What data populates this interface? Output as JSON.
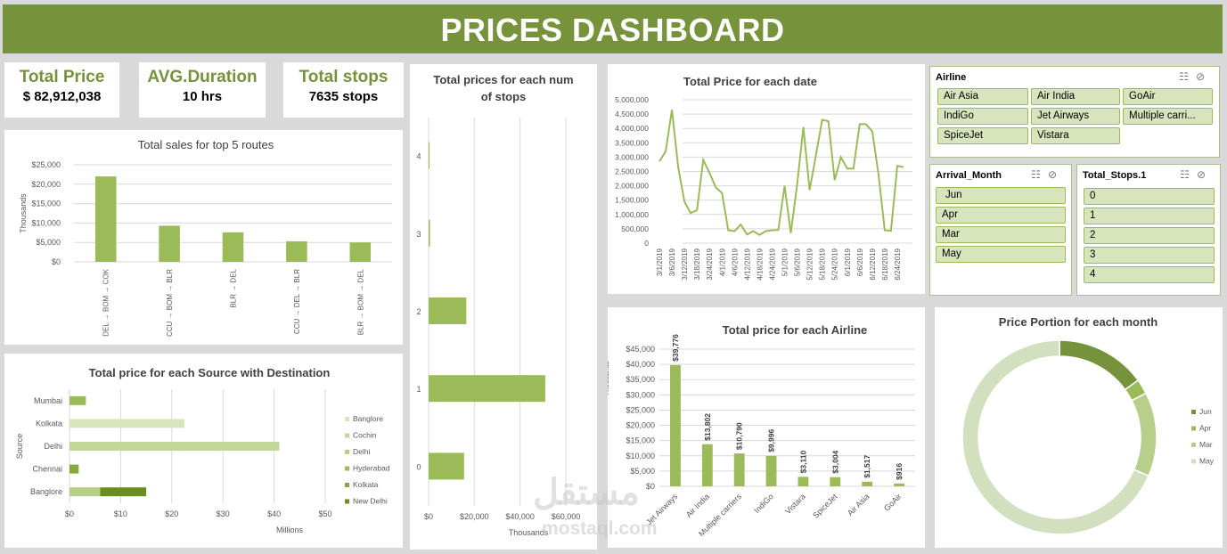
{
  "header": {
    "title": "PRICES DASHBOARD"
  },
  "kpis": [
    {
      "label": "Total Price",
      "value": "$ 82,912,038"
    },
    {
      "label": "AVG.Duration",
      "value": "10 hrs"
    },
    {
      "label": "Total stops",
      "value": "7635 stops"
    }
  ],
  "colors": {
    "accent": "#76933c",
    "bar": "#9bbb59",
    "light": "#d8e4bc"
  },
  "chart_data": [
    {
      "id": "routes",
      "type": "bar",
      "title": "Total sales for top 5 routes",
      "ylabel": "Thousands",
      "categories": [
        "DEL → BOM → COK",
        "CCU → BOM → BLR",
        "BLR → DEL",
        "CCU → DEL → BLR",
        "BLR → BOM → DEL"
      ],
      "values": [
        22000,
        9300,
        7600,
        5300,
        5000
      ],
      "ticks": [
        "$0",
        "$5,000",
        "$10,000",
        "$15,000",
        "$20,000",
        "$25,000"
      ],
      "ylim": [
        0,
        25000
      ],
      "grid": true
    },
    {
      "id": "stops",
      "type": "bar",
      "orientation": "horizontal",
      "title": "Total prices for each num of stops",
      "xlabel": "Thousands",
      "categories": [
        "0",
        "1",
        "2",
        "3",
        "4"
      ],
      "values": [
        15500,
        51000,
        16500,
        600,
        400
      ],
      "ticks": [
        "$0",
        "$20,000",
        "$40,000",
        "$60,000"
      ],
      "xlim": [
        0,
        60000
      ],
      "grid": true
    },
    {
      "id": "source",
      "type": "bar",
      "orientation": "horizontal",
      "stacked": true,
      "title": "Total price for each Source with Destination",
      "ylabel": "Source",
      "xlabel": "Millions",
      "categories": [
        "Banglore",
        "Chennai",
        "Delhi",
        "Kolkata",
        "Mumbai"
      ],
      "ticks": [
        "$0",
        "$10",
        "$20",
        "$30",
        "$40",
        "$50"
      ],
      "xlim": [
        0,
        50
      ],
      "legend_position": "right",
      "series": [
        {
          "name": "Banglore",
          "color": "#d8e4bc",
          "values": [
            0,
            0,
            0,
            22.5,
            0
          ]
        },
        {
          "name": "Cochin",
          "color": "#c4d79b",
          "values": [
            0,
            0,
            41,
            0,
            0
          ]
        },
        {
          "name": "Delhi",
          "color": "#b6cf86",
          "values": [
            6,
            0,
            0,
            0,
            0
          ]
        },
        {
          "name": "Hyderabad",
          "color": "#9bbb59",
          "values": [
            0,
            0,
            0,
            0,
            3.2
          ]
        },
        {
          "name": "Kolkata",
          "color": "#86a83f",
          "values": [
            0,
            1.8,
            0,
            0,
            0
          ]
        },
        {
          "name": "New Delhi",
          "color": "#6b8e23",
          "values": [
            9,
            0,
            0,
            0,
            0
          ]
        }
      ]
    },
    {
      "id": "dates",
      "type": "line",
      "title": "Total Price for each date",
      "ticks": [
        "0",
        "500,000",
        "1,000,000",
        "1,500,000",
        "2,000,000",
        "2,500,000",
        "3,000,000",
        "3,500,000",
        "4,000,000",
        "4,500,000",
        "5,000,000"
      ],
      "ylim": [
        0,
        5000000
      ],
      "grid": true,
      "x": [
        "3/1/2019",
        "3/3/2019",
        "3/6/2019",
        "3/9/2019",
        "3/12/2019",
        "3/15/2019",
        "3/18/2019",
        "3/21/2019",
        "3/24/2019",
        "3/27/2019",
        "4/1/2019",
        "4/3/2019",
        "4/6/2019",
        "4/9/2019",
        "4/12/2019",
        "4/15/2019",
        "4/18/2019",
        "4/21/2019",
        "4/24/2019",
        "4/27/2019",
        "5/1/2019",
        "5/3/2019",
        "5/6/2019",
        "5/9/2019",
        "5/12/2019",
        "5/15/2019",
        "5/18/2019",
        "5/21/2019",
        "5/24/2019",
        "5/27/2019",
        "6/1/2019",
        "6/3/2019",
        "6/6/2019",
        "6/9/2019",
        "6/12/2019",
        "6/15/2019",
        "6/18/2019",
        "6/21/2019",
        "6/24/2019",
        "6/27/2019"
      ],
      "x_tick_labels": [
        "3/1/2019",
        "3/6/2019",
        "3/12/2019",
        "3/18/2019",
        "3/24/2019",
        "4/1/2019",
        "4/6/2019",
        "4/12/2019",
        "4/18/2019",
        "4/24/2019",
        "5/1/2019",
        "5/6/2019",
        "5/12/2019",
        "5/18/2019",
        "5/24/2019",
        "6/1/2019",
        "6/6/2019",
        "6/12/2019",
        "6/18/2019",
        "6/24/2019"
      ],
      "values": [
        2850000,
        3200000,
        4650000,
        2650000,
        1450000,
        1050000,
        1150000,
        2900000,
        2450000,
        1950000,
        1750000,
        450000,
        420000,
        650000,
        300000,
        420000,
        290000,
        420000,
        450000,
        460000,
        2000000,
        350000,
        2050000,
        4050000,
        1850000,
        3050000,
        4300000,
        4250000,
        2200000,
        3000000,
        2600000,
        2600000,
        4150000,
        4150000,
        3900000,
        2400000,
        450000,
        430000,
        2700000,
        2650000
      ]
    },
    {
      "id": "airline",
      "type": "bar",
      "title": "Total price for each Airline",
      "ylabel": "Thousands",
      "categories": [
        "Jet Airways",
        "Air India",
        "Multiple carriers",
        "IndiGo",
        "Vistara",
        "SpiceJet",
        "Air Asia",
        "GoAir"
      ],
      "values": [
        39776,
        13802,
        10790,
        9996,
        3110,
        3004,
        1517,
        916
      ],
      "data_labels": [
        "$39,776",
        "$13,802",
        "$10,790",
        "$9,996",
        "$3,110",
        "$3,004",
        "$1,517",
        "$916"
      ],
      "ticks": [
        "$0",
        "$5,000",
        "$10,000",
        "$15,000",
        "$20,000",
        "$25,000",
        "$30,000",
        "$35,000",
        "$40,000",
        "$45,000"
      ],
      "ylim": [
        0,
        45000
      ],
      "grid": true
    },
    {
      "id": "month",
      "type": "pie",
      "variant": "doughnut",
      "title": "Price Portion for each month",
      "legend_position": "right",
      "categories": [
        "Jun",
        "Apr",
        "Mar",
        "May"
      ],
      "values": [
        15,
        2.5,
        14,
        68.5
      ],
      "colors": [
        "#76933c",
        "#9bbb59",
        "#b8cf8c",
        "#d3e0bf"
      ]
    }
  ],
  "slicers": {
    "airline": {
      "title": "Airline",
      "items": [
        "Air Asia",
        "Air India",
        "GoAir",
        "IndiGo",
        "Jet Airways",
        "Multiple carri...",
        "SpiceJet",
        "Vistara"
      ]
    },
    "arrival_month": {
      "title": "Arrival_Month",
      "items": [
        "Jun",
        "Apr",
        "Mar",
        "May"
      ]
    },
    "total_stops": {
      "title": "Total_Stops.1",
      "items": [
        "0",
        "1",
        "2",
        "3",
        "4"
      ]
    },
    "icons": [
      "multi-select-icon",
      "clear-filter-icon"
    ]
  },
  "watermark": {
    "text": "مستقل",
    "site": "mostaql.com"
  }
}
